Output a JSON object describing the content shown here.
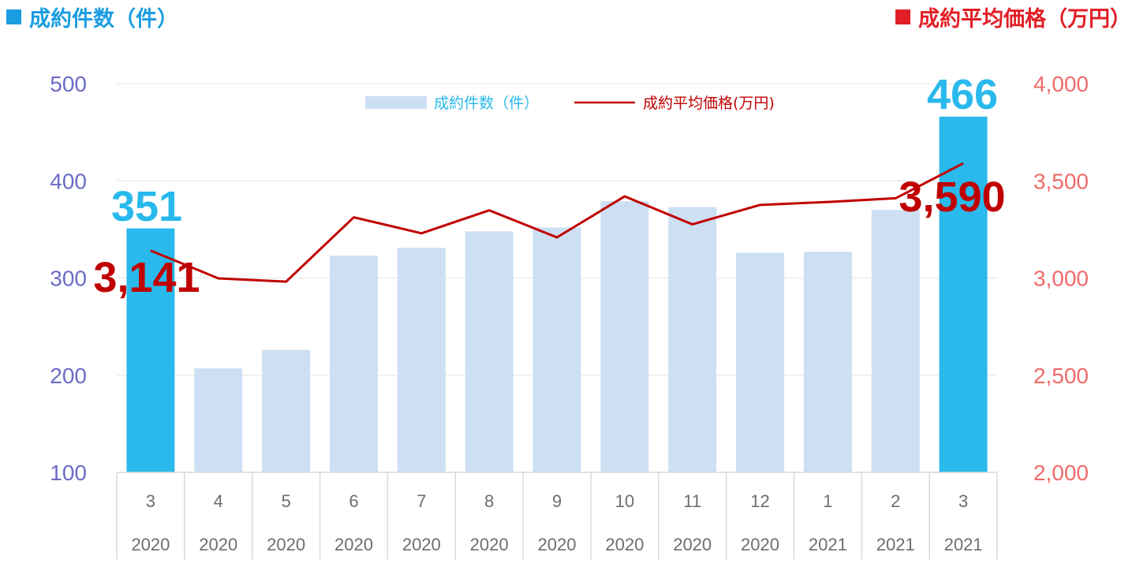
{
  "header": {
    "left_title": "成約件数（件）",
    "right_title": "成約平均価格（万円）"
  },
  "colors": {
    "left_accent": "#1a9de1",
    "right_accent": "#e21f26",
    "bar_highlight": "#29b9ec",
    "bar_normal": "#cddff3",
    "line": "#c00000",
    "left_axis_text": "#6b6bc6",
    "right_axis_text": "#f06a6a",
    "callout_count": "#29b9ec",
    "callout_price": "#c00000"
  },
  "legend": {
    "bar_label": "成約件数（件）",
    "line_label": "成約平均価格(万円)"
  },
  "chart_data": {
    "type": "bar",
    "categories": [
      "3",
      "4",
      "5",
      "6",
      "7",
      "8",
      "9",
      "10",
      "11",
      "12",
      "1",
      "2",
      "3"
    ],
    "years": [
      "2020",
      "2020",
      "2020",
      "2020",
      "2020",
      "2020",
      "2020",
      "2020",
      "2020",
      "2020",
      "2021",
      "2021",
      "2021"
    ],
    "series": [
      {
        "name": "成約件数（件）",
        "type": "bar",
        "axis": "left",
        "values": [
          351,
          207,
          226,
          323,
          331,
          348,
          352,
          379,
          373,
          326,
          327,
          370,
          466
        ],
        "highlighted": [
          true,
          false,
          false,
          false,
          false,
          false,
          false,
          false,
          false,
          false,
          false,
          false,
          true
        ]
      },
      {
        "name": "成約平均価格(万円)",
        "type": "line",
        "axis": "right",
        "values": [
          3141,
          2998,
          2981,
          3312,
          3230,
          3348,
          3209,
          3420,
          3276,
          3376,
          3391,
          3410,
          3590
        ]
      }
    ],
    "y_left": {
      "min": 100,
      "max": 500,
      "ticks": [
        "100",
        "200",
        "300",
        "400",
        "500"
      ]
    },
    "y_right": {
      "min": 2000,
      "max": 4000,
      "ticks": [
        "2,000",
        "2,500",
        "3,000",
        "3,500",
        "4,000"
      ]
    },
    "gridlines": true,
    "legend_position": "top-center",
    "annotations": {
      "first_count": "351",
      "last_count": "466",
      "first_price": "3,141",
      "last_price": "3,590"
    }
  }
}
